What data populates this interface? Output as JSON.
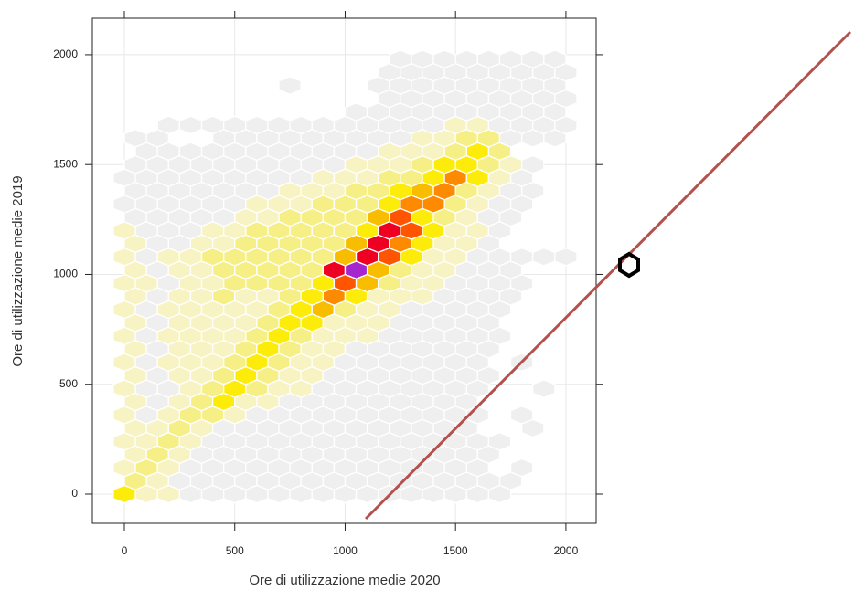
{
  "chart_data": {
    "type": "hexbin",
    "x_label": "Ore di utilizzazione medie 2020",
    "y_label": "Ore di utilizzazione medie 2019",
    "xlim": [
      -145,
      2137
    ],
    "ylim": [
      -133,
      2166
    ],
    "xticks": [
      0,
      500,
      1000,
      1500,
      2000
    ],
    "yticks": [
      0,
      500,
      1000,
      1500,
      2000
    ],
    "grid": true,
    "colors": [
      "#efefef",
      "#f8f3c2",
      "#f6ef86",
      "#fdec0a",
      "#f9bd00",
      "#fd8a00",
      "#ff5500",
      "#ee0022",
      "#a526cf"
    ],
    "rows": [
      {
        "y": 0,
        "x": [
          0,
          100,
          200,
          300,
          400,
          500,
          600,
          700,
          800,
          900,
          1000,
          1100,
          1200,
          1300,
          1400,
          1500,
          1600,
          1700
        ],
        "counts": [
          4,
          2,
          2,
          1,
          1,
          1,
          1,
          1,
          1,
          1,
          1,
          1,
          1,
          1,
          1,
          1,
          1,
          1
        ]
      },
      {
        "y": 60,
        "x": [
          50,
          150,
          250,
          350,
          450,
          550,
          650,
          750,
          850,
          950,
          1050,
          1150,
          1250,
          1350,
          1450,
          1550,
          1650,
          1750
        ],
        "counts": [
          3,
          2,
          1,
          1,
          1,
          1,
          1,
          1,
          1,
          1,
          1,
          1,
          1,
          1,
          1,
          1,
          1,
          1
        ]
      },
      {
        "y": 120,
        "x": [
          0,
          100,
          200,
          300,
          400,
          500,
          600,
          700,
          800,
          900,
          1000,
          1100,
          1200,
          1300,
          1400,
          1500,
          1600,
          1800
        ],
        "counts": [
          2,
          3,
          2,
          1,
          1,
          1,
          1,
          1,
          1,
          1,
          1,
          1,
          1,
          1,
          1,
          1,
          1,
          1
        ]
      },
      {
        "y": 180,
        "x": [
          50,
          150,
          250,
          350,
          450,
          550,
          650,
          750,
          850,
          950,
          1050,
          1150,
          1250,
          1350,
          1450,
          1550,
          1650
        ],
        "counts": [
          2,
          3,
          2,
          1,
          1,
          1,
          1,
          1,
          1,
          1,
          1,
          1,
          1,
          1,
          1,
          1,
          1
        ]
      },
      {
        "y": 240,
        "x": [
          0,
          100,
          200,
          300,
          400,
          500,
          600,
          700,
          800,
          900,
          1000,
          1100,
          1200,
          1300,
          1400,
          1500,
          1600,
          1700
        ],
        "counts": [
          2,
          2,
          3,
          2,
          1,
          1,
          1,
          1,
          1,
          1,
          1,
          1,
          1,
          1,
          1,
          1,
          1,
          1
        ]
      },
      {
        "y": 300,
        "x": [
          50,
          150,
          250,
          350,
          450,
          550,
          650,
          750,
          850,
          950,
          1050,
          1150,
          1250,
          1350,
          1450,
          1550,
          1850
        ],
        "counts": [
          2,
          2,
          3,
          2,
          1,
          1,
          1,
          1,
          1,
          1,
          1,
          1,
          1,
          1,
          1,
          1,
          1
        ]
      },
      {
        "y": 360,
        "x": [
          0,
          100,
          200,
          300,
          400,
          500,
          600,
          700,
          800,
          900,
          1000,
          1100,
          1200,
          1300,
          1400,
          1500,
          1600,
          1800
        ],
        "counts": [
          2,
          1,
          2,
          3,
          3,
          2,
          1,
          1,
          1,
          1,
          1,
          1,
          1,
          1,
          1,
          1,
          1,
          1
        ]
      },
      {
        "y": 420,
        "x": [
          50,
          150,
          250,
          350,
          450,
          550,
          650,
          750,
          850,
          950,
          1050,
          1150,
          1250,
          1350,
          1450,
          1550
        ],
        "counts": [
          2,
          1,
          2,
          3,
          4,
          2,
          2,
          1,
          1,
          1,
          1,
          1,
          1,
          1,
          1,
          1
        ]
      },
      {
        "y": 480,
        "x": [
          0,
          100,
          200,
          300,
          400,
          500,
          600,
          700,
          800,
          900,
          1000,
          1100,
          1200,
          1300,
          1400,
          1500,
          1600,
          1900
        ],
        "counts": [
          2,
          1,
          1,
          2,
          3,
          4,
          3,
          2,
          2,
          1,
          1,
          1,
          1,
          1,
          1,
          1,
          1,
          1
        ]
      },
      {
        "y": 540,
        "x": [
          50,
          150,
          250,
          350,
          450,
          550,
          650,
          750,
          850,
          950,
          1050,
          1150,
          1250,
          1350,
          1450,
          1550,
          1650
        ],
        "counts": [
          2,
          1,
          2,
          2,
          3,
          4,
          3,
          2,
          2,
          1,
          1,
          1,
          1,
          1,
          1,
          1,
          1
        ]
      },
      {
        "y": 600,
        "x": [
          0,
          100,
          200,
          300,
          400,
          500,
          600,
          700,
          800,
          900,
          1000,
          1100,
          1200,
          1300,
          1400,
          1500,
          1600,
          1800
        ],
        "counts": [
          2,
          1,
          2,
          2,
          2,
          3,
          4,
          3,
          2,
          2,
          1,
          1,
          1,
          1,
          1,
          1,
          1,
          1
        ]
      },
      {
        "y": 660,
        "x": [
          50,
          150,
          250,
          350,
          450,
          550,
          650,
          750,
          850,
          950,
          1050,
          1150,
          1250,
          1350,
          1450,
          1550,
          1650
        ],
        "counts": [
          2,
          1,
          2,
          2,
          2,
          3,
          4,
          3,
          2,
          2,
          1,
          1,
          1,
          1,
          1,
          1,
          1
        ]
      },
      {
        "y": 720,
        "x": [
          0,
          100,
          200,
          300,
          400,
          500,
          600,
          700,
          800,
          900,
          1000,
          1100,
          1200,
          1300,
          1400,
          1500,
          1600,
          1700
        ],
        "counts": [
          2,
          1,
          2,
          2,
          2,
          2,
          3,
          4,
          3,
          2,
          2,
          2,
          1,
          1,
          1,
          1,
          1,
          1
        ]
      },
      {
        "y": 780,
        "x": [
          50,
          150,
          250,
          350,
          450,
          550,
          650,
          750,
          850,
          950,
          1050,
          1150,
          1250,
          1350,
          1450,
          1550,
          1650
        ],
        "counts": [
          2,
          1,
          2,
          2,
          2,
          2,
          3,
          4,
          4,
          2,
          2,
          2,
          1,
          1,
          1,
          1,
          1
        ]
      },
      {
        "y": 840,
        "x": [
          0,
          100,
          200,
          300,
          400,
          500,
          600,
          700,
          800,
          900,
          1000,
          1100,
          1200,
          1300,
          1400,
          1500,
          1600,
          1700
        ],
        "counts": [
          2,
          1,
          2,
          2,
          2,
          2,
          2,
          3,
          4,
          5,
          3,
          2,
          2,
          1,
          1,
          1,
          1,
          1
        ]
      },
      {
        "y": 900,
        "x": [
          50,
          150,
          250,
          350,
          450,
          550,
          650,
          750,
          850,
          950,
          1050,
          1150,
          1250,
          1350,
          1450,
          1550,
          1650,
          1750
        ],
        "counts": [
          2,
          1,
          2,
          2,
          3,
          2,
          2,
          3,
          4,
          6,
          4,
          2,
          2,
          2,
          1,
          1,
          1,
          1
        ]
      },
      {
        "y": 960,
        "x": [
          0,
          100,
          200,
          300,
          400,
          500,
          600,
          700,
          800,
          900,
          1000,
          1100,
          1200,
          1300,
          1400,
          1500,
          1600,
          1700,
          1800
        ],
        "counts": [
          2,
          2,
          1,
          2,
          2,
          3,
          3,
          3,
          3,
          4,
          7,
          5,
          3,
          2,
          2,
          1,
          1,
          1,
          1
        ]
      },
      {
        "y": 1020,
        "x": [
          50,
          150,
          250,
          350,
          450,
          550,
          650,
          750,
          850,
          950,
          1050,
          1150,
          1250,
          1350,
          1450,
          1550,
          1650,
          1750
        ],
        "counts": [
          2,
          1,
          2,
          2,
          3,
          3,
          3,
          3,
          3,
          8,
          9,
          5,
          3,
          2,
          2,
          1,
          1,
          1
        ]
      },
      {
        "y": 1080,
        "x": [
          0,
          100,
          200,
          300,
          400,
          500,
          600,
          700,
          800,
          900,
          1000,
          1100,
          1200,
          1300,
          1400,
          1500,
          1600,
          1700,
          1800,
          1900,
          2000
        ],
        "counts": [
          2,
          1,
          2,
          2,
          3,
          3,
          3,
          3,
          3,
          3,
          5,
          8,
          7,
          4,
          2,
          2,
          1,
          1,
          1,
          1,
          1
        ]
      },
      {
        "y": 1140,
        "x": [
          50,
          150,
          250,
          350,
          450,
          550,
          650,
          750,
          850,
          950,
          1050,
          1150,
          1250,
          1350,
          1450,
          1550,
          1650
        ],
        "counts": [
          2,
          1,
          1,
          2,
          2,
          3,
          3,
          3,
          3,
          3,
          5,
          8,
          6,
          4,
          2,
          2,
          1
        ]
      },
      {
        "y": 1200,
        "x": [
          0,
          100,
          200,
          300,
          400,
          500,
          600,
          700,
          800,
          900,
          1000,
          1100,
          1200,
          1300,
          1400,
          1500,
          1600,
          1700
        ],
        "counts": [
          2,
          1,
          1,
          1,
          2,
          2,
          3,
          3,
          3,
          3,
          3,
          4,
          8,
          7,
          4,
          2,
          2,
          1
        ]
      },
      {
        "y": 1260,
        "x": [
          50,
          150,
          250,
          350,
          450,
          550,
          650,
          750,
          850,
          950,
          1050,
          1150,
          1250,
          1350,
          1450,
          1550,
          1650,
          1750
        ],
        "counts": [
          1,
          1,
          1,
          1,
          1,
          2,
          2,
          3,
          3,
          3,
          3,
          5,
          7,
          4,
          3,
          2,
          1,
          1
        ]
      },
      {
        "y": 1320,
        "x": [
          0,
          100,
          200,
          300,
          400,
          500,
          600,
          700,
          800,
          900,
          1000,
          1100,
          1200,
          1300,
          1400,
          1500,
          1600,
          1700,
          1800
        ],
        "counts": [
          1,
          1,
          1,
          1,
          1,
          1,
          2,
          2,
          2,
          3,
          3,
          3,
          4,
          6,
          6,
          3,
          2,
          1,
          1
        ]
      },
      {
        "y": 1380,
        "x": [
          50,
          150,
          250,
          350,
          450,
          550,
          650,
          750,
          850,
          950,
          1050,
          1150,
          1250,
          1350,
          1450,
          1550,
          1650,
          1750,
          1850
        ],
        "counts": [
          1,
          1,
          1,
          1,
          1,
          1,
          1,
          2,
          2,
          2,
          3,
          3,
          4,
          5,
          6,
          3,
          2,
          1,
          1
        ]
      },
      {
        "y": 1440,
        "x": [
          0,
          100,
          200,
          300,
          400,
          500,
          600,
          700,
          800,
          900,
          1000,
          1100,
          1200,
          1300,
          1400,
          1500,
          1600,
          1700,
          1800
        ],
        "counts": [
          1,
          1,
          1,
          1,
          1,
          1,
          1,
          1,
          1,
          2,
          2,
          2,
          3,
          3,
          4,
          6,
          4,
          2,
          1
        ]
      },
      {
        "y": 1500,
        "x": [
          50,
          150,
          250,
          350,
          450,
          550,
          650,
          750,
          850,
          950,
          1050,
          1150,
          1250,
          1350,
          1450,
          1550,
          1650,
          1750,
          1850
        ],
        "counts": [
          1,
          1,
          1,
          1,
          1,
          1,
          1,
          1,
          1,
          1,
          2,
          2,
          2,
          3,
          4,
          4,
          3,
          2,
          1
        ]
      },
      {
        "y": 1560,
        "x": [
          100,
          200,
          300,
          400,
          500,
          600,
          700,
          800,
          900,
          1000,
          1100,
          1200,
          1300,
          1400,
          1500,
          1600,
          1700
        ],
        "counts": [
          1,
          1,
          1,
          1,
          1,
          1,
          1,
          1,
          1,
          1,
          1,
          2,
          2,
          2,
          3,
          4,
          3
        ]
      },
      {
        "y": 1620,
        "x": [
          50,
          150,
          450,
          550,
          650,
          750,
          850,
          950,
          1050,
          1150,
          1250,
          1350,
          1450,
          1550,
          1650,
          1750,
          1850,
          1950
        ],
        "counts": [
          1,
          1,
          1,
          1,
          1,
          1,
          1,
          1,
          1,
          1,
          1,
          2,
          2,
          3,
          3,
          1,
          1,
          1
        ]
      },
      {
        "y": 1680,
        "x": [
          200,
          300,
          400,
          500,
          600,
          700,
          800,
          900,
          1000,
          1100,
          1200,
          1300,
          1400,
          1500,
          1600,
          1700,
          1800,
          1900,
          2000
        ],
        "counts": [
          1,
          1,
          1,
          1,
          1,
          1,
          1,
          1,
          1,
          1,
          1,
          1,
          1,
          2,
          2,
          1,
          1,
          1,
          1
        ]
      },
      {
        "y": 1740,
        "x": [
          1050,
          1150,
          1250,
          1350,
          1450,
          1550,
          1650,
          1750,
          1850,
          1950
        ],
        "counts": [
          1,
          1,
          1,
          1,
          1,
          1,
          1,
          1,
          1,
          1
        ]
      },
      {
        "y": 1800,
        "x": [
          1200,
          1300,
          1400,
          1500,
          1600,
          1700,
          1800,
          1900,
          2000
        ],
        "counts": [
          1,
          1,
          1,
          1,
          1,
          1,
          1,
          1,
          1
        ]
      },
      {
        "y": 1860,
        "x": [
          750,
          1150,
          1250,
          1350,
          1450,
          1550,
          1650,
          1750,
          1850,
          1950
        ],
        "counts": [
          1,
          1,
          1,
          1,
          1,
          1,
          1,
          1,
          1,
          1
        ]
      },
      {
        "y": 1920,
        "x": [
          1200,
          1300,
          1400,
          1500,
          1600,
          1700,
          1800,
          1900,
          2000
        ],
        "counts": [
          1,
          1,
          1,
          1,
          1,
          1,
          1,
          1,
          1
        ]
      },
      {
        "y": 1980,
        "x": [
          1250,
          1350,
          1450,
          1550,
          1650,
          1750,
          1850,
          1950
        ],
        "counts": [
          1,
          1,
          1,
          1,
          1,
          1,
          1,
          1
        ]
      }
    ]
  }
}
